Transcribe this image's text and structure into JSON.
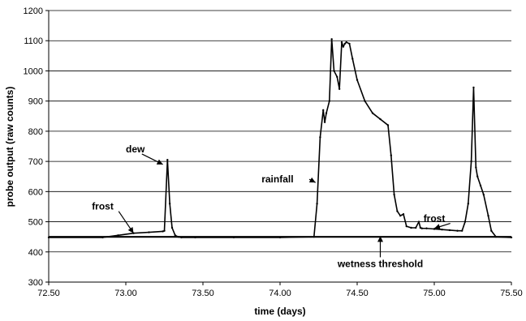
{
  "chart_data": {
    "type": "line",
    "title": "",
    "xlabel": "time (days)",
    "ylabel": "probe output (raw counts)",
    "xlim": [
      72.5,
      75.5
    ],
    "ylim": [
      300,
      1200
    ],
    "x_ticks": [
      "72.50",
      "73.00",
      "73.50",
      "74.00",
      "74.50",
      "75.00",
      "75.50"
    ],
    "y_ticks": [
      "300",
      "400",
      "500",
      "600",
      "700",
      "800",
      "900",
      "1000",
      "1100",
      "1200"
    ],
    "grid": "horizontal",
    "legend": "none",
    "series": [
      {
        "color": "#000000",
        "x": [
          72.5,
          72.85,
          72.95,
          73.05,
          73.15,
          73.24,
          73.25,
          73.27,
          73.285,
          73.3,
          73.32,
          73.34,
          73.36,
          73.45,
          73.7,
          74.0,
          74.22,
          74.24,
          74.26,
          74.28,
          74.29,
          74.3,
          74.32,
          74.335,
          74.35,
          74.37,
          74.385,
          74.4,
          74.41,
          74.42,
          74.43,
          74.45,
          74.47,
          74.5,
          74.55,
          74.6,
          74.65,
          74.7,
          74.72,
          74.74,
          74.76,
          74.78,
          74.8,
          74.82,
          74.85,
          74.88,
          74.9,
          74.91,
          74.92,
          74.95,
          75.0,
          75.05,
          75.1,
          75.15,
          75.18,
          75.2,
          75.22,
          75.24,
          75.255,
          75.27,
          75.28,
          75.3,
          75.32,
          75.35,
          75.37,
          75.4,
          75.5
        ],
        "y": [
          448,
          448,
          455,
          462,
          465,
          468,
          470,
          705,
          560,
          480,
          455,
          450,
          448,
          448,
          448,
          448,
          450,
          560,
          780,
          870,
          830,
          860,
          900,
          1105,
          1000,
          980,
          940,
          1095,
          1080,
          1090,
          1095,
          1090,
          1040,
          970,
          900,
          860,
          840,
          820,
          720,
          590,
          535,
          520,
          525,
          485,
          480,
          480,
          500,
          480,
          478,
          478,
          476,
          474,
          472,
          470,
          470,
          500,
          560,
          700,
          945,
          680,
          650,
          620,
          590,
          520,
          470,
          450,
          448
        ]
      },
      {
        "color": "#000000",
        "x": [
          72.5,
          75.5
        ],
        "y": [
          450,
          450
        ]
      }
    ],
    "annotations": [
      {
        "text": "dew",
        "label_x": 73.0,
        "label_y": 730,
        "arrow_x": 73.24,
        "arrow_y": 690
      },
      {
        "text": "frost",
        "label_x": 72.78,
        "label_y": 540,
        "arrow_x": 73.05,
        "arrow_y": 462
      },
      {
        "text": "rainfall",
        "label_x": 73.88,
        "label_y": 630,
        "arrow_x": 74.23,
        "arrow_y": 630
      },
      {
        "text": "frost",
        "label_x": 74.93,
        "label_y": 500,
        "arrow_x": 75.0,
        "arrow_y": 478
      },
      {
        "text": "wetness threshold",
        "label_x": 74.65,
        "label_y": 350,
        "arrow_x": 74.65,
        "arrow_y": 452
      }
    ]
  }
}
